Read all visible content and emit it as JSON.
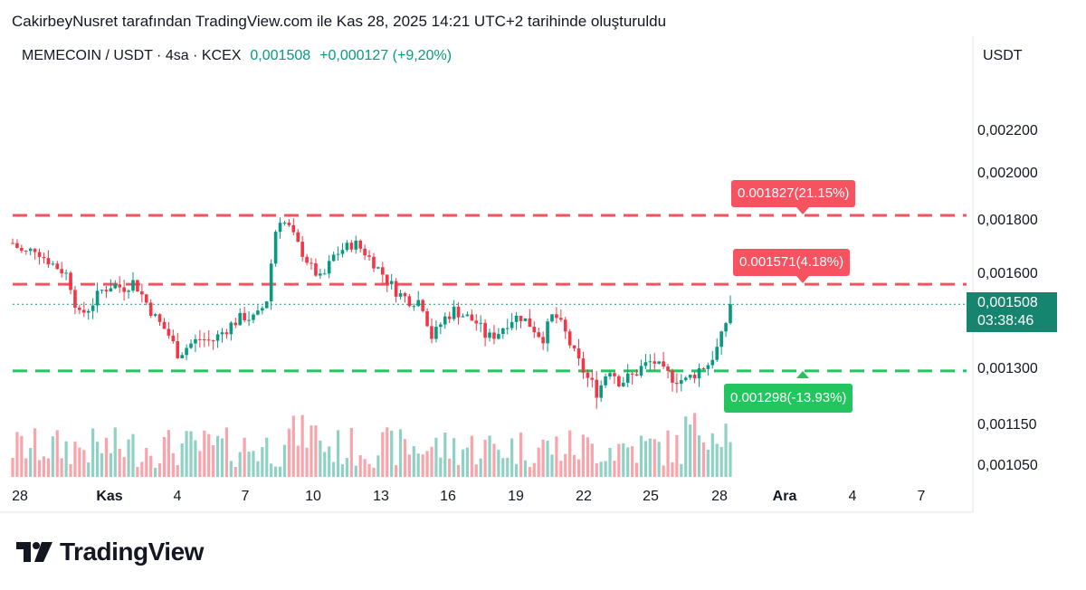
{
  "header": {
    "caption": "CakirbeyNusret tarafından TradingView.com ile Kas 28, 2025 14:21 UTC+2 tarihinde oluşturuldu"
  },
  "legend": {
    "symbol": "MEMECOIN / USDT · 4sa · KCEX",
    "price": "0,001508",
    "change": "+0,000127 (+9,20%)"
  },
  "currency": "USDT",
  "last_price": {
    "value": "0,001508",
    "countdown": "03:38:46"
  },
  "levels": [
    {
      "label": "0.001827(21.15%)",
      "value": 0.001827,
      "color": "#f7525f"
    },
    {
      "label": "0.001571(4.18%)",
      "value": 0.001571,
      "color": "#f7525f"
    },
    {
      "label": "0.001298(-13.93%)",
      "value": 0.001298,
      "color": "#22c55e"
    }
  ],
  "logo": {
    "text": "TradingView",
    "icon": "tradingview-logo-icon"
  },
  "colors": {
    "up": "#089981",
    "down": "#f23645",
    "level_red": "#f7525f",
    "level_green": "#22c55e",
    "last_tag": "#16856f"
  },
  "chart_data": {
    "type": "candlestick",
    "y_unit": "USDT",
    "y_ticks": [
      "0,002200",
      "0,002000",
      "0,001800",
      "0,001600",
      "0,001300",
      "0,001150",
      "0,001050"
    ],
    "y_tick_values": [
      0.0022,
      0.002,
      0.0018,
      0.0016,
      0.0013,
      0.00115,
      0.00105
    ],
    "x_ticks": [
      "28",
      "Kas",
      "4",
      "7",
      "10",
      "13",
      "16",
      "19",
      "22",
      "25",
      "28",
      "Ara",
      "4",
      "7"
    ],
    "bold_x_ticks": [
      "Kas",
      "Ara"
    ],
    "close_path": [
      0.00172,
      0.00168,
      0.0017,
      0.00166,
      0.00163,
      0.0016,
      0.00147,
      0.0015,
      0.00155,
      0.00157,
      0.00156,
      0.00158,
      0.00152,
      0.00146,
      0.00142,
      0.00135,
      0.00138,
      0.0014,
      0.00139,
      0.00142,
      0.00145,
      0.00147,
      0.00146,
      0.00152,
      0.00182,
      0.00178,
      0.0017,
      0.00163,
      0.00158,
      0.00167,
      0.0017,
      0.00172,
      0.00168,
      0.00163,
      0.00158,
      0.00154,
      0.00152,
      0.00152,
      0.0014,
      0.00146,
      0.00149,
      0.00147,
      0.00145,
      0.0014,
      0.00142,
      0.00146,
      0.00147,
      0.00144,
      0.0014,
      0.00148,
      0.00142,
      0.00134,
      0.00128,
      0.00124,
      0.00131,
      0.00127,
      0.00128,
      0.00131,
      0.00133,
      0.00129,
      0.00128,
      0.00127,
      0.0013,
      0.00132,
      0.00138,
      0.0015
    ]
  }
}
